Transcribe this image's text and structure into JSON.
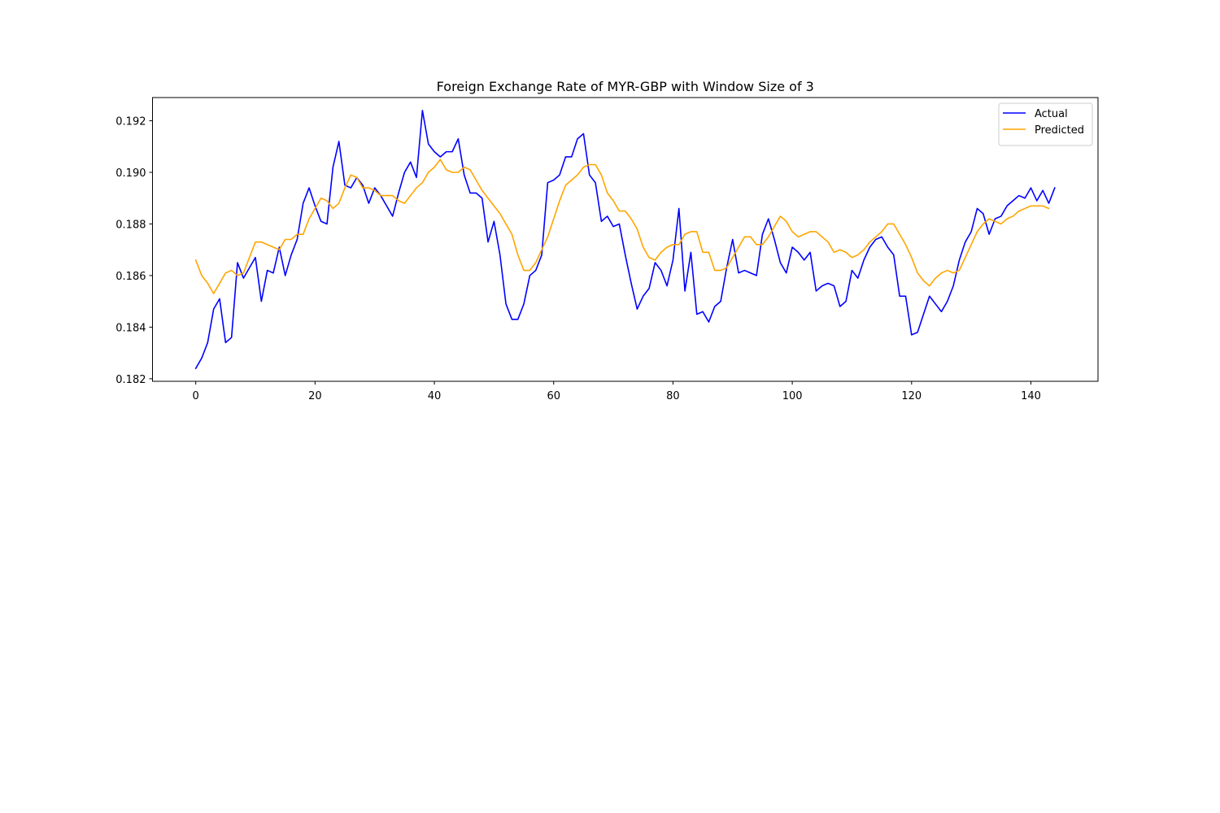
{
  "chart_data": {
    "type": "line",
    "title": "Foreign Exchange Rate of MYR-GBP with Window Size of 3",
    "xlabel": "",
    "ylabel": "",
    "xlim": [
      -7.25,
      151.25
    ],
    "ylim": [
      0.1819,
      0.1929
    ],
    "x_ticks": [
      0,
      20,
      40,
      60,
      80,
      100,
      120,
      140
    ],
    "y_ticks": [
      0.182,
      0.184,
      0.186,
      0.188,
      0.19,
      0.192
    ],
    "x_tick_labels": [
      "0",
      "20",
      "40",
      "60",
      "80",
      "100",
      "120",
      "140"
    ],
    "y_tick_labels": [
      "0.182",
      "0.184",
      "0.186",
      "0.188",
      "0.190",
      "0.192"
    ],
    "grid": false,
    "legend_position": "top-right",
    "series": [
      {
        "name": "Actual",
        "color": "#0000ff",
        "values": [
          0.1824,
          0.1828,
          0.1834,
          0.1847,
          0.1851,
          0.1834,
          0.1836,
          0.1865,
          0.1859,
          0.1863,
          0.1867,
          0.185,
          0.1862,
          0.1861,
          0.1871,
          0.186,
          0.1868,
          0.1874,
          0.1888,
          0.1894,
          0.1887,
          0.1881,
          0.188,
          0.1902,
          0.1912,
          0.1895,
          0.1894,
          0.1898,
          0.1895,
          0.1888,
          0.1894,
          0.1891,
          0.1887,
          0.1883,
          0.1892,
          0.19,
          0.1904,
          0.1898,
          0.1924,
          0.1911,
          0.1908,
          0.1906,
          0.1908,
          0.1908,
          0.1913,
          0.1899,
          0.1892,
          0.1892,
          0.189,
          0.1873,
          0.1881,
          0.1868,
          0.1849,
          0.1843,
          0.1843,
          0.1849,
          0.186,
          0.1862,
          0.1868,
          0.1896,
          0.1897,
          0.1899,
          0.1906,
          0.1906,
          0.1913,
          0.1915,
          0.1899,
          0.1896,
          0.1881,
          0.1883,
          0.1879,
          0.188,
          0.1868,
          0.1857,
          0.1847,
          0.1852,
          0.1855,
          0.1865,
          0.1862,
          0.1856,
          0.1866,
          0.1886,
          0.1854,
          0.1869,
          0.1845,
          0.1846,
          0.1842,
          0.1848,
          0.185,
          0.1863,
          0.1874,
          0.1861,
          0.1862,
          0.1861,
          0.186,
          0.1876,
          0.1882,
          0.1874,
          0.1865,
          0.1861,
          0.1871,
          0.1869,
          0.1866,
          0.1869,
          0.1854,
          0.1856,
          0.1857,
          0.1856,
          0.1848,
          0.185,
          0.1862,
          0.1859,
          0.1866,
          0.1871,
          0.1874,
          0.1875,
          0.1871,
          0.1868,
          0.1852,
          0.1852,
          0.1837,
          0.1838,
          0.1845,
          0.1852,
          0.1849,
          0.1846,
          0.185,
          0.1856,
          0.1866,
          0.1873,
          0.1877,
          0.1886,
          0.1884,
          0.1876,
          0.1882,
          0.1883,
          0.1887,
          0.1889,
          0.1891,
          0.189,
          0.1894,
          0.1889,
          0.1893,
          0.1888,
          0.1894
        ]
      },
      {
        "name": "Predicted",
        "color": "#ffa500",
        "values": [
          0.1866,
          0.186,
          0.1857,
          0.1853,
          0.1857,
          0.1861,
          0.1862,
          0.186,
          0.1861,
          0.1867,
          0.1873,
          0.1873,
          0.1872,
          0.1871,
          0.187,
          0.1874,
          0.1874,
          0.1876,
          0.1876,
          0.1882,
          0.1886,
          0.189,
          0.1889,
          0.1886,
          0.1888,
          0.1894,
          0.1899,
          0.1898,
          0.1894,
          0.1894,
          0.1893,
          0.1891,
          0.1891,
          0.1891,
          0.1889,
          0.1888,
          0.1891,
          0.1894,
          0.1896,
          0.19,
          0.1902,
          0.1905,
          0.1901,
          0.19,
          0.19,
          0.1902,
          0.1901,
          0.1897,
          0.1893,
          0.189,
          0.1887,
          0.1884,
          0.188,
          0.1876,
          0.1868,
          0.1862,
          0.1862,
          0.1865,
          0.187,
          0.1875,
          0.1882,
          0.1889,
          0.1895,
          0.1897,
          0.1899,
          0.1902,
          0.1903,
          0.1903,
          0.1899,
          0.1892,
          0.1889,
          0.1885,
          0.1885,
          0.1882,
          0.1878,
          0.1871,
          0.1867,
          0.1866,
          0.1869,
          0.1871,
          0.1872,
          0.1872,
          0.1876,
          0.1877,
          0.1877,
          0.1869,
          0.1869,
          0.1862,
          0.1862,
          0.1863,
          0.1867,
          0.1871,
          0.1875,
          0.1875,
          0.1872,
          0.1872,
          0.1875,
          0.1879,
          0.1883,
          0.1881,
          0.1877,
          0.1875,
          0.1876,
          0.1877,
          0.1877,
          0.1875,
          0.1873,
          0.1869,
          0.187,
          0.1869,
          0.1867,
          0.1868,
          0.187,
          0.1873,
          0.1875,
          0.1877,
          0.188,
          0.188,
          0.1876,
          0.1872,
          0.1867,
          0.1861,
          0.1858,
          0.1856,
          0.1859,
          0.1861,
          0.1862,
          0.1861,
          0.1862,
          0.1867,
          0.1872,
          0.1877,
          0.188,
          0.1882,
          0.1881,
          0.188,
          0.1882,
          0.1883,
          0.1885,
          0.1886,
          0.1887,
          0.1887,
          0.1887,
          0.1886
        ]
      }
    ]
  }
}
